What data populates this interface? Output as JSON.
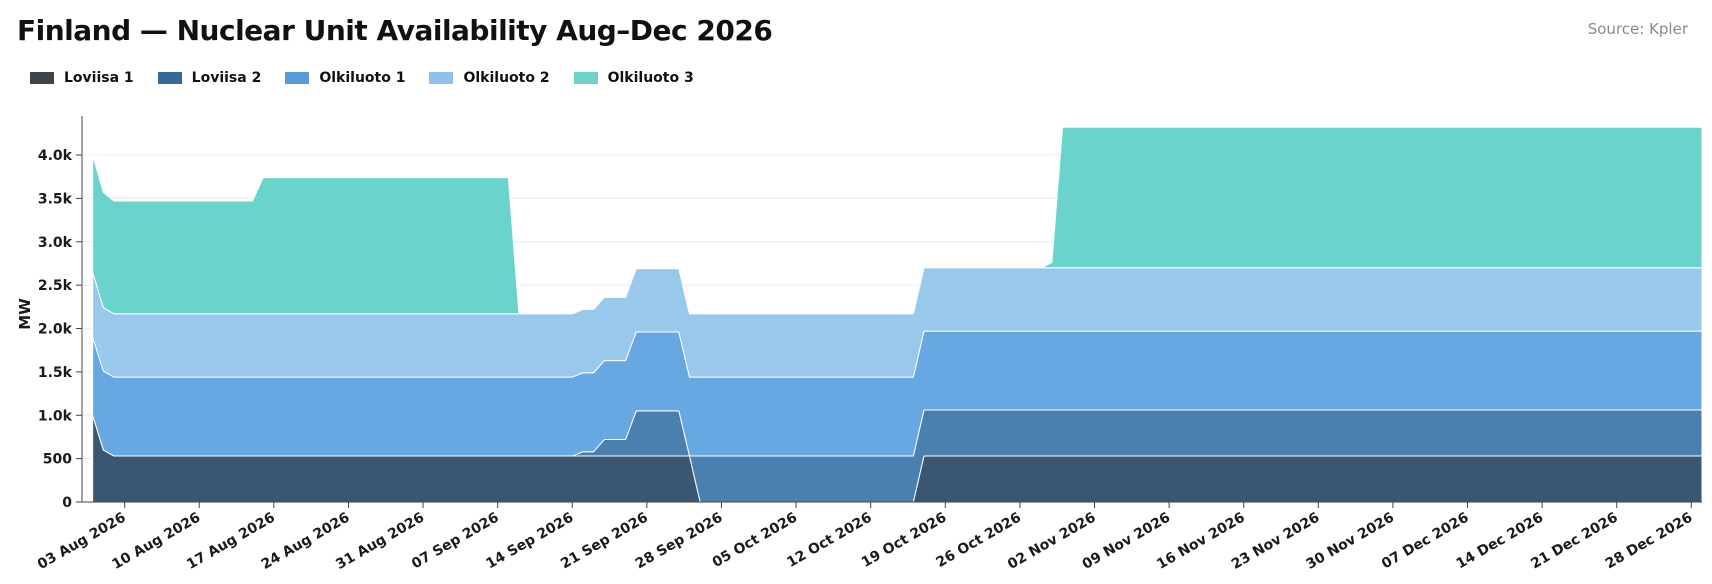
{
  "header": {
    "title": "Finland — Nuclear Unit Availability  Aug–Dec 2026",
    "source": "Source: Kpler"
  },
  "chart_data": {
    "type": "area",
    "stacked": true,
    "title": "Finland — Nuclear Unit Availability  Aug–Dec 2026",
    "ylabel": "MW",
    "xlabel": "",
    "ylim": [
      0,
      4450
    ],
    "y_ticks": [
      0,
      500,
      1000,
      1500,
      2000,
      2500,
      3000,
      3500,
      4000
    ],
    "y_tick_labels": [
      "0",
      "500",
      "1.0k",
      "1.5k",
      "2.0k",
      "2.5k",
      "3.0k",
      "3.5k",
      "4.0k"
    ],
    "x_range": [
      "2026-07-30",
      "2026-12-29"
    ],
    "x_ticks": [
      "2026-08-03",
      "2026-08-10",
      "2026-08-17",
      "2026-08-24",
      "2026-08-31",
      "2026-09-07",
      "2026-09-14",
      "2026-09-21",
      "2026-09-28",
      "2026-10-05",
      "2026-10-12",
      "2026-10-19",
      "2026-10-26",
      "2026-11-02",
      "2026-11-09",
      "2026-11-16",
      "2026-11-23",
      "2026-11-30",
      "2026-12-07",
      "2026-12-14",
      "2026-12-21",
      "2026-12-28"
    ],
    "x_tick_labels": [
      "03 Aug 2026",
      "10 Aug 2026",
      "17 Aug 2026",
      "24 Aug 2026",
      "31 Aug 2026",
      "07 Sep 2026",
      "14 Sep 2026",
      "21 Sep 2026",
      "28 Sep 2026",
      "05 Oct 2026",
      "12 Oct 2026",
      "19 Oct 2026",
      "26 Oct 2026",
      "02 Nov 2026",
      "09 Nov 2026",
      "16 Nov 2026",
      "23 Nov 2026",
      "30 Nov 2026",
      "07 Dec 2026",
      "14 Dec 2026",
      "21 Dec 2026",
      "28 Dec 2026"
    ],
    "grid": "horizontal",
    "legend_position": "top-left",
    "series": [
      {
        "name": "Loviisa 1",
        "color": "#3b5673",
        "legend_color": "#3f4449",
        "points": [
          [
            "2026-07-31",
            1000
          ],
          [
            "2026-08-01",
            600
          ],
          [
            "2026-08-02",
            530
          ],
          [
            "2026-09-25",
            530
          ],
          [
            "2026-09-26",
            0
          ],
          [
            "2026-10-16",
            0
          ],
          [
            "2026-10-17",
            530
          ],
          [
            "2026-12-29",
            530
          ]
        ]
      },
      {
        "name": "Loviisa 2",
        "color": "#4a80b0",
        "legend_color": "#336898",
        "points": [
          [
            "2026-07-31",
            0
          ],
          [
            "2026-09-14",
            0
          ],
          [
            "2026-09-15",
            50
          ],
          [
            "2026-09-16",
            50
          ],
          [
            "2026-09-17",
            190
          ],
          [
            "2026-09-19",
            190
          ],
          [
            "2026-09-20",
            520
          ],
          [
            "2026-09-24",
            520
          ],
          [
            "2026-09-25",
            0
          ],
          [
            "2026-09-26",
            530
          ],
          [
            "2026-10-16",
            530
          ],
          [
            "2026-10-17",
            530
          ],
          [
            "2026-12-29",
            530
          ]
        ]
      },
      {
        "name": "Olkiluoto 1",
        "color": "#68a8e2",
        "legend_color": "#5b9ad8",
        "points": [
          [
            "2026-07-31",
            900
          ],
          [
            "2026-08-01",
            910
          ],
          [
            "2026-08-02",
            910
          ],
          [
            "2026-09-14",
            910
          ],
          [
            "2026-09-15",
            910
          ],
          [
            "2026-09-16",
            910
          ],
          [
            "2026-09-17",
            910
          ],
          [
            "2026-09-19",
            910
          ],
          [
            "2026-09-20",
            910
          ],
          [
            "2026-09-24",
            910
          ],
          [
            "2026-09-25",
            910
          ],
          [
            "2026-09-26",
            910
          ],
          [
            "2026-10-16",
            910
          ],
          [
            "2026-10-17",
            910
          ],
          [
            "2026-12-29",
            910
          ]
        ]
      },
      {
        "name": "Olkiluoto 2",
        "color": "#98c8ec",
        "legend_color": "#8fc1ec",
        "points": [
          [
            "2026-07-31",
            750
          ],
          [
            "2026-08-01",
            730
          ],
          [
            "2026-08-02",
            730
          ],
          [
            "2026-09-14",
            730
          ],
          [
            "2026-09-15",
            730
          ],
          [
            "2026-09-16",
            730
          ],
          [
            "2026-09-17",
            730
          ],
          [
            "2026-09-19",
            730
          ],
          [
            "2026-09-20",
            730
          ],
          [
            "2026-09-24",
            730
          ],
          [
            "2026-09-25",
            730
          ],
          [
            "2026-09-26",
            730
          ],
          [
            "2026-10-16",
            730
          ],
          [
            "2026-10-17",
            730
          ],
          [
            "2026-12-29",
            730
          ]
        ]
      },
      {
        "name": "Olkiluoto 3",
        "color": "#6ad4cc",
        "legend_color": "#6dd3c9",
        "points": [
          [
            "2026-07-31",
            1350
          ],
          [
            "2026-08-01",
            1330
          ],
          [
            "2026-08-02",
            1300
          ],
          [
            "2026-08-15",
            1300
          ],
          [
            "2026-08-16",
            1570
          ],
          [
            "2026-09-08",
            1570
          ],
          [
            "2026-09-09",
            0
          ],
          [
            "2026-10-28",
            0
          ],
          [
            "2026-10-29",
            60
          ],
          [
            "2026-10-30",
            1620
          ],
          [
            "2026-12-29",
            1620
          ]
        ]
      }
    ]
  }
}
